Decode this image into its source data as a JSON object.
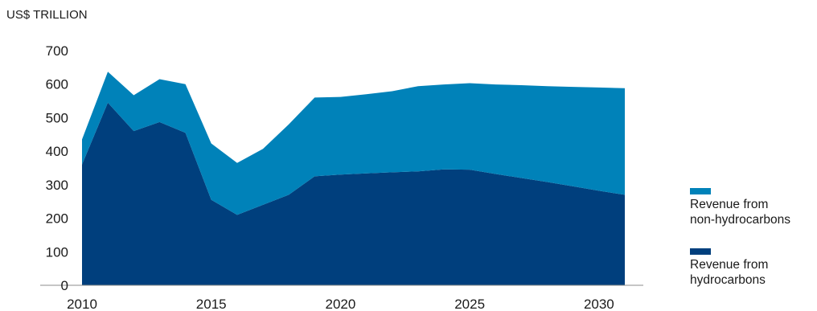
{
  "chart_data": {
    "type": "area",
    "stacked": true,
    "ylabel": "US$ TRILLION",
    "xlim": [
      2010,
      2031
    ],
    "ylim": [
      0,
      700
    ],
    "x_ticks": [
      "2010",
      "2015",
      "2020",
      "2025",
      "2030"
    ],
    "y_ticks": [
      "0",
      "100",
      "200",
      "300",
      "400",
      "500",
      "600",
      "700"
    ],
    "x": [
      2010,
      2011,
      2012,
      2013,
      2014,
      2015,
      2016,
      2017,
      2018,
      2019,
      2020,
      2021,
      2022,
      2023,
      2024,
      2025,
      2026,
      2027,
      2028,
      2029,
      2030,
      2031
    ],
    "series": [
      {
        "name": "Revenue from hydrocarbons",
        "color": "#003f7d",
        "values": [
          360,
          545,
          460,
          487,
          455,
          255,
          210,
          240,
          270,
          325,
          330,
          334,
          337,
          340,
          346,
          345,
          332,
          320,
          308,
          295,
          282,
          270
        ]
      },
      {
        "name": "Revenue from non-hydrocarbons",
        "color": "#0082b9",
        "values": [
          75,
          92,
          107,
          128,
          145,
          168,
          155,
          167,
          210,
          235,
          232,
          236,
          242,
          254,
          253,
          258,
          267,
          277,
          286,
          297,
          308,
          318
        ]
      }
    ],
    "legend_position": "right",
    "grid": false
  },
  "legend": {
    "non_hydrocarbons": "Revenue from\nnon-hydrocarbons",
    "hydrocarbons": "Revenue from\nhydrocarbons"
  },
  "colors": {
    "hydrocarbons": "#003f7d",
    "non_hydrocarbons": "#0082b9",
    "axis": "#8c8c8c"
  }
}
